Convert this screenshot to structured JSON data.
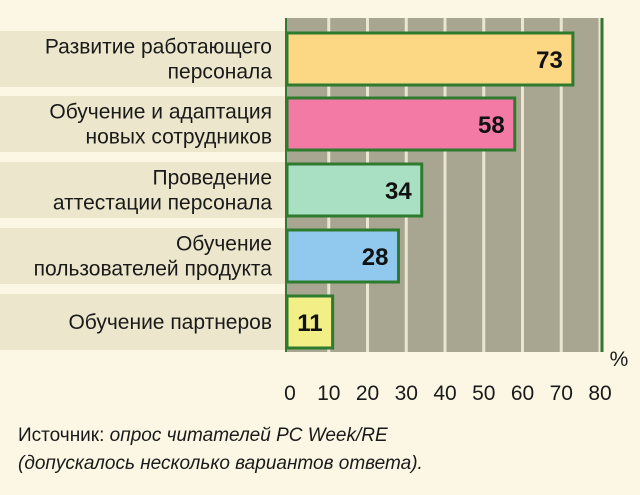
{
  "chart_data": {
    "type": "bar",
    "orientation": "horizontal",
    "categories": [
      [
        "Развитие работающего",
        "персонала"
      ],
      [
        "Обучение и адаптация",
        "новых сотрудников"
      ],
      [
        "Проведение",
        "аттестации персонала"
      ],
      [
        "Обучение",
        "пользователей продукта"
      ],
      [
        "Обучение партнеров"
      ]
    ],
    "values": [
      73,
      58,
      34,
      28,
      11
    ],
    "value_labels": [
      "73",
      "58",
      "34",
      "28",
      "11"
    ],
    "bar_colors": [
      "#fcd884",
      "#f27aa4",
      "#a9dfc2",
      "#90c8ee",
      "#f1ef86"
    ],
    "xlim": [
      0,
      80
    ],
    "xticks": [
      "0",
      "10",
      "20",
      "30",
      "40",
      "50",
      "60",
      "70",
      "80"
    ],
    "unit": "%",
    "grid": true,
    "colors": {
      "plot_background": "#a8a690",
      "gridline": "#e9e6d2",
      "band": "#ece7cc",
      "bar_border": "#2e7a2e",
      "frame": "#2e7a2e",
      "page_background": "#fbf7e4"
    }
  },
  "source": {
    "prefix": "Источник: ",
    "body": "опрос читателей PC Week/RE",
    "note": "(допускалось несколько вариантов ответа)."
  }
}
